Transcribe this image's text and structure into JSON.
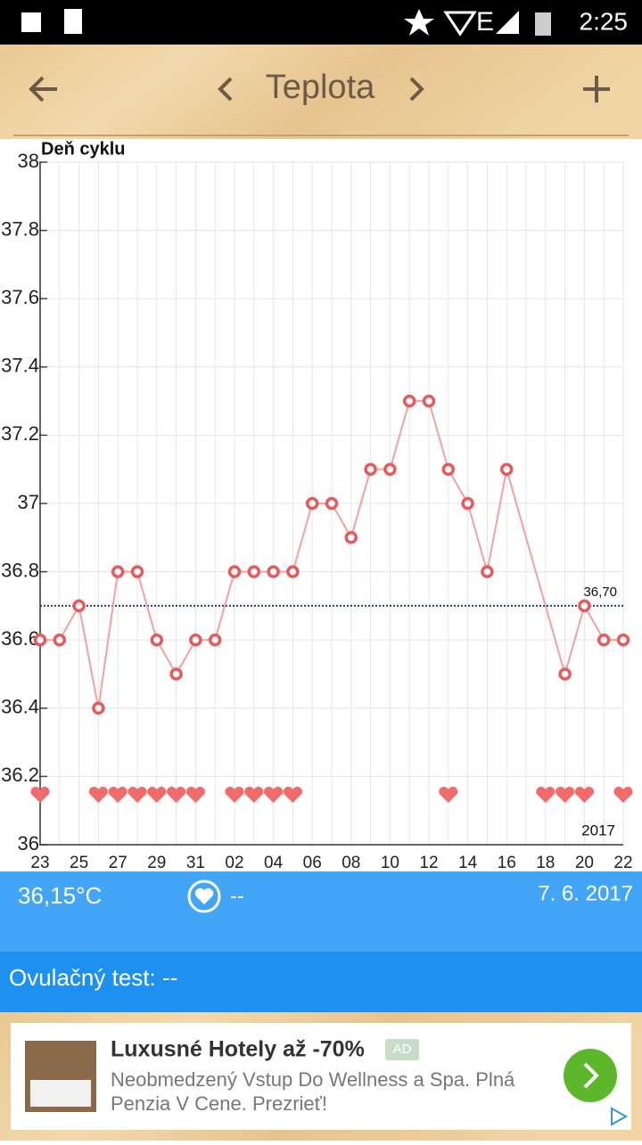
{
  "status_bar": {
    "time": "2:25"
  },
  "header": {
    "title": "Teplota"
  },
  "chart_data": {
    "type": "line",
    "axis_label": "Deň cyklu",
    "categories": [
      "23",
      null,
      "25",
      null,
      "27",
      null,
      "29",
      null,
      "31",
      null,
      "02",
      null,
      "04",
      null,
      "06",
      null,
      "08",
      null,
      "10",
      null,
      "12",
      null,
      "14",
      null,
      "16",
      null,
      "18",
      null,
      "20",
      null,
      "22"
    ],
    "series": [
      {
        "color": "#e85a5a",
        "line_color": "#f5a0a0",
        "values": [
          36.6,
          36.6,
          36.7,
          36.4,
          36.8,
          36.8,
          36.6,
          36.5,
          36.6,
          36.6,
          36.8,
          36.8,
          36.8,
          36.8,
          37.0,
          37.0,
          36.9,
          37.1,
          37.1,
          37.3,
          37.3,
          37.1,
          37.0,
          36.8,
          37.1,
          null,
          null,
          36.5,
          36.7,
          36.6,
          36.6
        ]
      }
    ],
    "hearts": [
      true,
      false,
      false,
      true,
      true,
      true,
      true,
      true,
      true,
      false,
      true,
      true,
      true,
      true,
      false,
      false,
      false,
      false,
      false,
      false,
      false,
      true,
      false,
      false,
      false,
      false,
      true,
      true,
      true,
      false,
      true
    ],
    "heart_color": "#f26b6b",
    "reference_line": {
      "value": 36.7,
      "label": "36,70",
      "color": "#2233bb"
    },
    "year_label": "2017",
    "ylim": [
      36,
      38
    ],
    "yticks": [
      36,
      36.2,
      36.4,
      36.6,
      36.8,
      37,
      37.2,
      37.4,
      37.6,
      37.8,
      38
    ],
    "grid": true
  },
  "info": {
    "temperature": "36,15°C",
    "intercourse": "--",
    "date": "7. 6. 2017"
  },
  "ovulation_test": "Ovulačný test: --",
  "ad": {
    "title": "Luxusné Hotely až -70%",
    "badge": "AD",
    "text": "Neobmedzený Vstup Do Wellness a Spa. Plná Penzia V Cene. Prezrieť!"
  }
}
